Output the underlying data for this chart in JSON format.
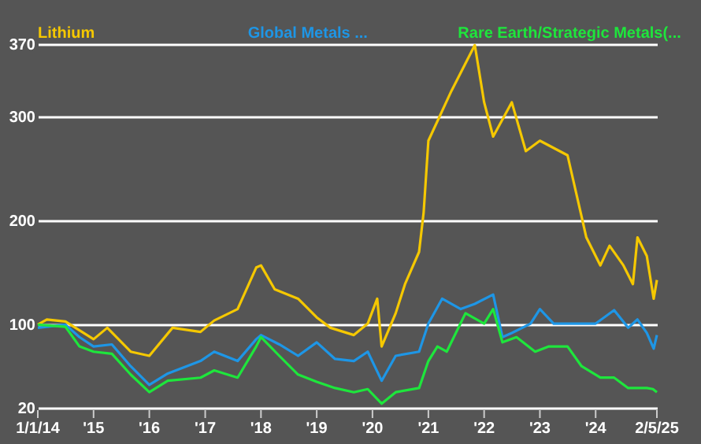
{
  "chart_data": {
    "type": "line",
    "legend": "top",
    "grid": "y",
    "marker": "none",
    "line_style": "solid",
    "xlim": [
      "2014-01-01",
      "2025-02-05"
    ],
    "xticks": [
      {
        "value": "2014-01-01",
        "label": "1/1/14"
      },
      {
        "value": "2015-01-01",
        "label": "'15"
      },
      {
        "value": "2016-01-01",
        "label": "'16"
      },
      {
        "value": "2017-01-01",
        "label": "'17"
      },
      {
        "value": "2018-01-01",
        "label": "'18"
      },
      {
        "value": "2019-01-01",
        "label": "'19"
      },
      {
        "value": "2020-01-01",
        "label": "'20"
      },
      {
        "value": "2021-01-01",
        "label": "'21"
      },
      {
        "value": "2022-01-01",
        "label": "'22"
      },
      {
        "value": "2023-01-01",
        "label": "'23"
      },
      {
        "value": "2024-01-01",
        "label": "'24"
      },
      {
        "value": "2025-02-05",
        "label": "2/5/25"
      }
    ],
    "ylim": [
      20,
      370
    ],
    "yticks": [
      20,
      100,
      200,
      300,
      370
    ],
    "series": [
      {
        "name": "Lithium",
        "color": "#f5c800",
        "x": [
          "2014-01",
          "2014-03",
          "2014-07",
          "2015-01",
          "2015-04",
          "2015-09",
          "2016-01",
          "2016-06",
          "2016-12",
          "2017-03",
          "2017-08",
          "2017-12",
          "2018-01",
          "2018-04",
          "2018-09",
          "2019-01",
          "2019-04",
          "2019-09",
          "2019-12",
          "2020-02",
          "2020-03",
          "2020-06",
          "2020-08",
          "2020-11",
          "2020-12",
          "2021-01",
          "2021-06",
          "2021-11",
          "2022-01",
          "2022-03",
          "2022-07",
          "2022-10",
          "2023-01",
          "2023-07",
          "2023-10",
          "2023-11",
          "2024-02",
          "2024-04",
          "2024-07",
          "2024-09",
          "2024-10",
          "2024-12",
          "2025-01-15",
          "2025-02-05"
        ],
        "values": [
          100,
          105,
          103,
          86,
          97,
          74,
          70,
          97,
          93,
          104,
          115,
          155,
          157,
          134,
          125,
          107,
          97,
          90,
          101,
          125,
          79,
          111,
          139,
          170,
          208,
          277,
          325,
          369,
          314,
          281,
          314,
          267,
          277,
          263,
          204,
          184,
          157,
          176,
          157,
          139,
          184,
          166,
          125,
          143
        ]
      },
      {
        "name": "Global Metals ...",
        "color": "#1e96e6",
        "x": [
          "2014-01",
          "2014-07",
          "2014-10",
          "2015-01",
          "2015-05",
          "2015-09",
          "2016-01",
          "2016-05",
          "2016-12",
          "2017-03",
          "2017-08",
          "2017-12",
          "2018-01",
          "2018-05",
          "2018-09",
          "2019-01",
          "2019-05",
          "2019-09",
          "2019-12",
          "2020-03",
          "2020-06",
          "2020-11",
          "2021-01",
          "2021-04",
          "2021-08",
          "2021-11",
          "2022-03",
          "2022-05",
          "2022-07",
          "2022-11",
          "2023-01",
          "2023-04",
          "2023-09",
          "2024-01",
          "2024-05",
          "2024-08",
          "2024-10",
          "2024-12",
          "2025-01-15",
          "2025-02-05"
        ],
        "values": [
          97,
          100,
          88,
          79,
          81,
          60,
          42,
          53,
          65,
          74,
          65,
          86,
          90,
          81,
          70,
          83,
          67,
          65,
          74,
          46,
          70,
          74,
          101,
          125,
          115,
          120,
          129,
          88,
          92,
          101,
          115,
          101,
          101,
          101,
          114,
          97,
          105,
          92,
          77,
          90
        ]
      },
      {
        "name": "Rare Earth/Strategic Metals(...",
        "color": "#1ee63c",
        "x": [
          "2014-01",
          "2014-07",
          "2014-10",
          "2015-01",
          "2015-05",
          "2015-09",
          "2016-01",
          "2016-05",
          "2016-12",
          "2017-03",
          "2017-08",
          "2017-12",
          "2018-01",
          "2018-05",
          "2018-09",
          "2019-01",
          "2019-05",
          "2019-09",
          "2019-12",
          "2020-03",
          "2020-06",
          "2020-11",
          "2021-01",
          "2021-03",
          "2021-05",
          "2021-09",
          "2022-01",
          "2022-03",
          "2022-05",
          "2022-08",
          "2022-12",
          "2023-03",
          "2023-07",
          "2023-10",
          "2024-02",
          "2024-05",
          "2024-08",
          "2024-12",
          "2025-01-10",
          "2025-02-05"
        ],
        "values": [
          100,
          98,
          79,
          74,
          72,
          52,
          35,
          46,
          49,
          56,
          49,
          79,
          88,
          70,
          52,
          45,
          39,
          35,
          38,
          24,
          35,
          39,
          65,
          79,
          74,
          111,
          101,
          115,
          83,
          88,
          74,
          79,
          79,
          60,
          49,
          49,
          39,
          39,
          38,
          35
        ]
      }
    ]
  }
}
